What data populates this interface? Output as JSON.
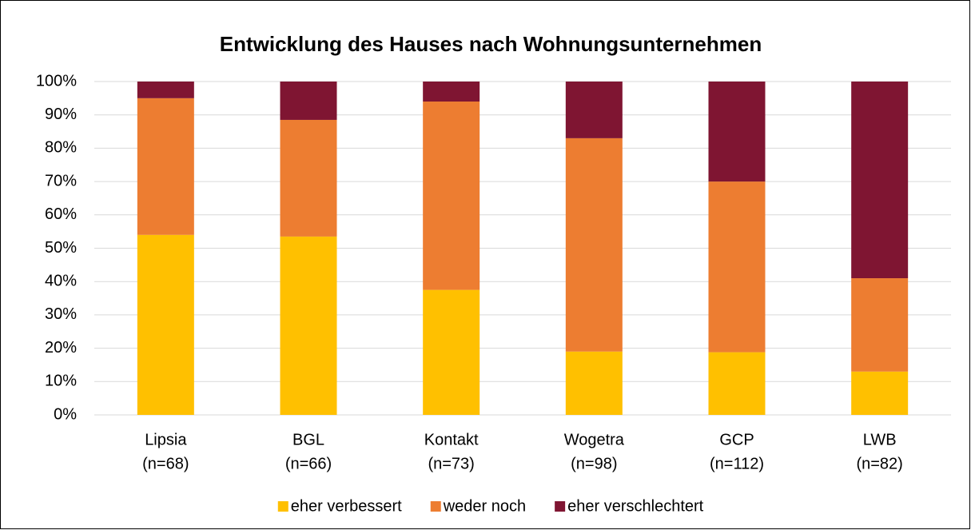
{
  "chart_data": {
    "type": "stacked_bar",
    "title": "Entwicklung des Hauses nach Wohnungsunternehmen",
    "categories": [
      "Lipsia",
      "BGL",
      "Kontakt",
      "Wogetra",
      "GCP",
      "LWB"
    ],
    "category_notes": [
      "(n=68)",
      "(n=66)",
      "(n=73)",
      "(n=98)",
      "(n=112)",
      "(n=82)"
    ],
    "series": [
      {
        "name": "eher verbessert",
        "color": "#FFC000",
        "values": [
          54,
          53.5,
          37.5,
          19,
          18.8,
          13
        ]
      },
      {
        "name": "weder noch",
        "color": "#ED7D31",
        "values": [
          41,
          35,
          56.5,
          64,
          51.2,
          28
        ]
      },
      {
        "name": "eher verschlechtert",
        "color": "#7F1532",
        "values": [
          5,
          11.5,
          6,
          17,
          30,
          59
        ]
      }
    ],
    "ylim": [
      0,
      100
    ],
    "yticks": [
      {
        "value": 0,
        "label": "0%"
      },
      {
        "value": 10,
        "label": "10%"
      },
      {
        "value": 20,
        "label": "20%"
      },
      {
        "value": 30,
        "label": "30%"
      },
      {
        "value": 40,
        "label": "40%"
      },
      {
        "value": 50,
        "label": "50%"
      },
      {
        "value": 60,
        "label": "60%"
      },
      {
        "value": 70,
        "label": "70%"
      },
      {
        "value": 80,
        "label": "80%"
      },
      {
        "value": 90,
        "label": "90%"
      },
      {
        "value": 100,
        "label": "100%"
      }
    ],
    "grid": true,
    "legend": "bottom"
  }
}
